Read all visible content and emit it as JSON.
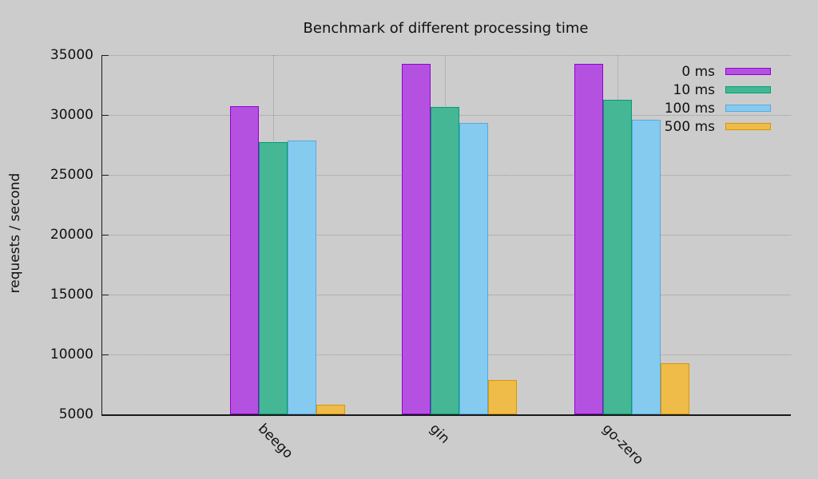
{
  "chart_data": {
    "type": "bar",
    "title": "Benchmark of different processing time",
    "ylabel": "requests / second",
    "xlabel": "",
    "categories": [
      "beego",
      "gin",
      "go-zero"
    ],
    "series": [
      {
        "name": "0 ms",
        "fill": "#b551e1",
        "border": "#9400d3",
        "values": [
          30750,
          34300,
          34250
        ]
      },
      {
        "name": "10 ms",
        "fill": "#45b795",
        "border": "#009e73",
        "values": [
          27750,
          30650,
          31250
        ]
      },
      {
        "name": "100 ms",
        "fill": "#85cbf0",
        "border": "#56a9dd",
        "values": [
          27850,
          29350,
          29600
        ]
      },
      {
        "name": "500 ms",
        "fill": "#efbb49",
        "border": "#dc9600",
        "values": [
          5800,
          7900,
          9250
        ]
      }
    ],
    "ylim": [
      5000,
      35000
    ],
    "yticks": [
      5000,
      10000,
      15000,
      20000,
      25000,
      30000,
      35000
    ],
    "grid": true,
    "legend_position": "top-right",
    "background_color": "#cccccc",
    "grid_color": "#999999",
    "axis_color": "#1a1a1a"
  }
}
